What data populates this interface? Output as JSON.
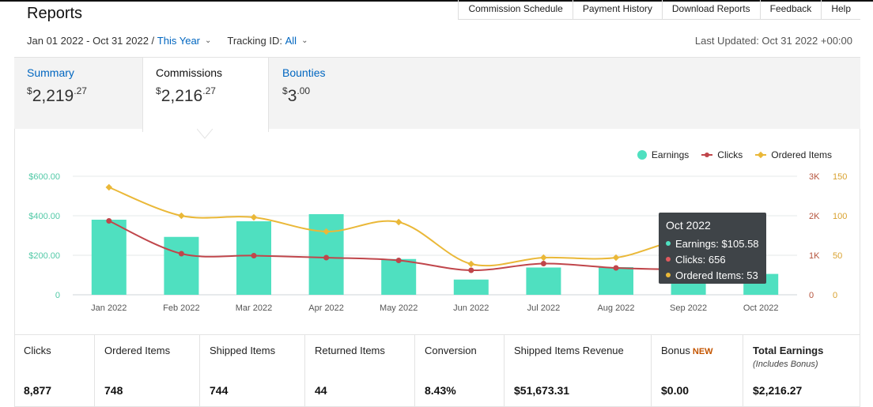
{
  "page_title": "Reports",
  "top_links": [
    "Commission Schedule",
    "Payment History",
    "Download Reports",
    "Feedback",
    "Help"
  ],
  "filters": {
    "date_range": "Jan 01 2022 - Oct 31 2022 /",
    "date_preset": "This Year",
    "tracking_label": "Tracking ID:",
    "tracking_value": "All"
  },
  "last_updated": "Last Updated: Oct 31 2022 +00:00",
  "tabs": [
    {
      "label": "Summary",
      "dollar": "$",
      "whole": "2,219",
      "cents": ".27",
      "active": false
    },
    {
      "label": "Commissions",
      "dollar": "$",
      "whole": "2,216",
      "cents": ".27",
      "active": true
    },
    {
      "label": "Bounties",
      "dollar": "$",
      "whole": "3",
      "cents": ".00",
      "active": false
    }
  ],
  "colors": {
    "earnings": "#4fe0c0",
    "clicks": "#c0464b",
    "ordered": "#eab838",
    "axis_left": "#52c9a7",
    "axis_mid": "#b5533c",
    "axis_right": "#d9a230"
  },
  "chart_data": {
    "type": "bar",
    "categories": [
      "Jan 2022",
      "Feb 2022",
      "Mar 2022",
      "Apr 2022",
      "May 2022",
      "Jun 2022",
      "Jul 2022",
      "Aug 2022",
      "Sep 2022",
      "Oct 2022"
    ],
    "series": [
      {
        "name": "Earnings",
        "type": "bar",
        "axis": "left",
        "values": [
          380,
          293,
          372,
          408,
          181,
          77,
          138,
          140,
          120,
          105.58
        ]
      },
      {
        "name": "Clicks",
        "type": "line",
        "axis": "mid",
        "values": [
          1870,
          1040,
          990,
          940,
          870,
          620,
          790,
          680,
          640,
          656
        ]
      },
      {
        "name": "Ordered Items",
        "type": "line",
        "axis": "right",
        "values": [
          136,
          100,
          98,
          80,
          92,
          39,
          47,
          47,
          70,
          53
        ]
      }
    ],
    "left_axis": {
      "ticks": [
        "$600.00",
        "$400.00",
        "$200.00",
        "0"
      ],
      "range": [
        0,
        600
      ]
    },
    "mid_axis": {
      "ticks": [
        "3K",
        "2K",
        "1K",
        "0"
      ],
      "range": [
        0,
        3000
      ]
    },
    "right_axis": {
      "ticks": [
        "150",
        "100",
        "50",
        "0"
      ],
      "range": [
        0,
        150
      ]
    },
    "legend": [
      "Earnings",
      "Clicks",
      "Ordered Items"
    ],
    "legend_position": "top-right",
    "grid": true
  },
  "tooltip": {
    "title": "Oct 2022",
    "rows": [
      "Earnings: $105.58",
      "Clicks: 656",
      "Ordered Items: 53"
    ]
  },
  "stats": [
    {
      "label": "Clicks",
      "value": "8,877"
    },
    {
      "label": "Ordered Items",
      "value": "748"
    },
    {
      "label": "Shipped Items",
      "value": "744"
    },
    {
      "label": "Returned Items",
      "value": "44"
    },
    {
      "label": "Conversion",
      "value": "8.43%"
    },
    {
      "label": "Shipped Items Revenue",
      "value": "$51,673.31"
    },
    {
      "label": "Bonus",
      "badge": "NEW",
      "value": "$0.00"
    },
    {
      "label": "Total Earnings",
      "note": "(Includes Bonus)",
      "value": "$2,216.27"
    }
  ]
}
